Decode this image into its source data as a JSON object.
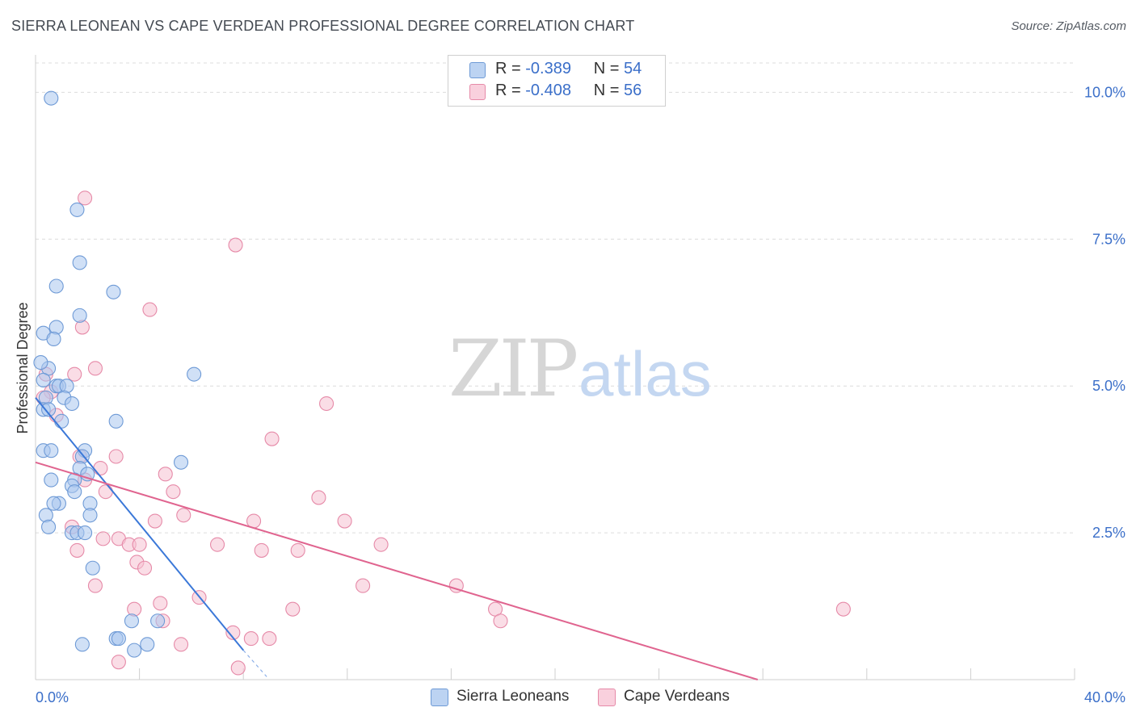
{
  "title": "SIERRA LEONEAN VS CAPE VERDEAN PROFESSIONAL DEGREE CORRELATION CHART",
  "source": "Source: ZipAtlas.com",
  "watermark": {
    "zip": "ZIP",
    "atlas": "atlas"
  },
  "colors": {
    "blue_fill": "#a9c7ee",
    "blue_stroke": "#6e9ad6",
    "blue_line": "#3b78d8",
    "pink_fill": "#f6c1d2",
    "pink_stroke": "#e68aa8",
    "pink_line": "#e0648f",
    "grid": "#dcdcdc",
    "accent_text": "#3b6fc9"
  },
  "legend": {
    "rows": [
      {
        "r_label": "R =",
        "r_value": "-0.389",
        "n_label": "N =",
        "n_value": "54"
      },
      {
        "r_label": "R =",
        "r_value": "-0.408",
        "n_label": "N =",
        "n_value": "56"
      }
    ]
  },
  "bottom_legend": {
    "series1": "Sierra Leoneans",
    "series2": "Cape Verdeans"
  },
  "chart_data": {
    "type": "scatter",
    "title": "SIERRA LEONEAN VS CAPE VERDEAN PROFESSIONAL DEGREE CORRELATION CHART",
    "xlabel": "",
    "ylabel": "Professional Degree",
    "xlim": [
      0,
      40
    ],
    "ylim": [
      0,
      10.5
    ],
    "x_tick_labels": [
      {
        "value": 0,
        "label": "0.0%"
      },
      {
        "value": 40,
        "label": "40.0%"
      }
    ],
    "y_tick_labels": [
      {
        "value": 2.5,
        "label": "2.5%"
      },
      {
        "value": 5.0,
        "label": "5.0%"
      },
      {
        "value": 7.5,
        "label": "7.5%"
      },
      {
        "value": 10.0,
        "label": "10.0%"
      }
    ],
    "x_minor_ticks": [
      0,
      4,
      8,
      12,
      16,
      20,
      24,
      28,
      32,
      36,
      40
    ],
    "grid": true,
    "series": [
      {
        "name": "Sierra Leoneans",
        "R": -0.389,
        "N": 54,
        "trend": {
          "x0": 0,
          "y0": 4.8,
          "x1": 8,
          "y1": 0.5,
          "dash_to_x": 8.9,
          "dash_to_y": 0.05
        },
        "points": [
          [
            0.6,
            9.9
          ],
          [
            1.6,
            8.0
          ],
          [
            1.7,
            7.1
          ],
          [
            0.8,
            6.7
          ],
          [
            3.0,
            6.6
          ],
          [
            1.7,
            6.2
          ],
          [
            0.8,
            6.0
          ],
          [
            0.3,
            5.9
          ],
          [
            0.7,
            5.8
          ],
          [
            6.1,
            5.2
          ],
          [
            0.5,
            5.3
          ],
          [
            0.2,
            5.4
          ],
          [
            0.3,
            5.1
          ],
          [
            0.8,
            5.0
          ],
          [
            0.9,
            5.0
          ],
          [
            1.2,
            5.0
          ],
          [
            0.4,
            4.8
          ],
          [
            1.1,
            4.8
          ],
          [
            1.4,
            4.7
          ],
          [
            0.3,
            4.6
          ],
          [
            0.5,
            4.6
          ],
          [
            3.1,
            4.4
          ],
          [
            1.0,
            4.4
          ],
          [
            0.3,
            3.9
          ],
          [
            0.6,
            3.9
          ],
          [
            1.9,
            3.9
          ],
          [
            1.8,
            3.8
          ],
          [
            5.6,
            3.7
          ],
          [
            1.7,
            3.6
          ],
          [
            2.0,
            3.5
          ],
          [
            0.6,
            3.4
          ],
          [
            1.5,
            3.4
          ],
          [
            1.4,
            3.3
          ],
          [
            1.5,
            3.2
          ],
          [
            0.9,
            3.0
          ],
          [
            2.1,
            3.0
          ],
          [
            0.7,
            3.0
          ],
          [
            2.1,
            2.8
          ],
          [
            0.4,
            2.8
          ],
          [
            0.5,
            2.6
          ],
          [
            1.4,
            2.5
          ],
          [
            1.6,
            2.5
          ],
          [
            1.9,
            2.5
          ],
          [
            2.2,
            1.9
          ],
          [
            3.7,
            1.0
          ],
          [
            4.7,
            1.0
          ],
          [
            3.1,
            0.7
          ],
          [
            3.2,
            0.7
          ],
          [
            1.8,
            0.6
          ],
          [
            4.3,
            0.6
          ],
          [
            3.8,
            0.5
          ]
        ]
      },
      {
        "name": "Cape Verdeans",
        "R": -0.408,
        "N": 56,
        "trend": {
          "x0": 0,
          "y0": 3.7,
          "x1": 27.8,
          "y1": 0.0
        },
        "points": [
          [
            1.9,
            8.2
          ],
          [
            7.7,
            7.4
          ],
          [
            4.4,
            6.3
          ],
          [
            1.8,
            6.0
          ],
          [
            2.3,
            5.3
          ],
          [
            1.5,
            5.2
          ],
          [
            0.4,
            5.2
          ],
          [
            0.6,
            4.9
          ],
          [
            0.3,
            4.8
          ],
          [
            0.8,
            4.5
          ],
          [
            11.2,
            4.7
          ],
          [
            9.1,
            4.1
          ],
          [
            3.1,
            3.8
          ],
          [
            1.7,
            3.8
          ],
          [
            2.5,
            3.6
          ],
          [
            5.0,
            3.5
          ],
          [
            1.9,
            3.4
          ],
          [
            5.3,
            3.2
          ],
          [
            2.7,
            3.2
          ],
          [
            10.9,
            3.1
          ],
          [
            5.7,
            2.8
          ],
          [
            4.6,
            2.7
          ],
          [
            8.4,
            2.7
          ],
          [
            11.9,
            2.7
          ],
          [
            1.4,
            2.6
          ],
          [
            3.2,
            2.4
          ],
          [
            2.6,
            2.4
          ],
          [
            3.6,
            2.3
          ],
          [
            4.0,
            2.3
          ],
          [
            13.3,
            2.3
          ],
          [
            7.0,
            2.3
          ],
          [
            10.1,
            2.2
          ],
          [
            8.7,
            2.2
          ],
          [
            1.6,
            2.2
          ],
          [
            3.9,
            2.0
          ],
          [
            4.2,
            1.9
          ],
          [
            12.6,
            1.6
          ],
          [
            2.3,
            1.6
          ],
          [
            16.2,
            1.6
          ],
          [
            6.3,
            1.4
          ],
          [
            4.8,
            1.3
          ],
          [
            17.7,
            1.2
          ],
          [
            31.1,
            1.2
          ],
          [
            9.9,
            1.2
          ],
          [
            3.8,
            1.2
          ],
          [
            4.9,
            1.0
          ],
          [
            17.9,
            1.0
          ],
          [
            7.6,
            0.8
          ],
          [
            8.3,
            0.7
          ],
          [
            9.0,
            0.7
          ],
          [
            5.6,
            0.6
          ],
          [
            3.2,
            0.3
          ],
          [
            7.8,
            0.2
          ]
        ]
      }
    ]
  }
}
